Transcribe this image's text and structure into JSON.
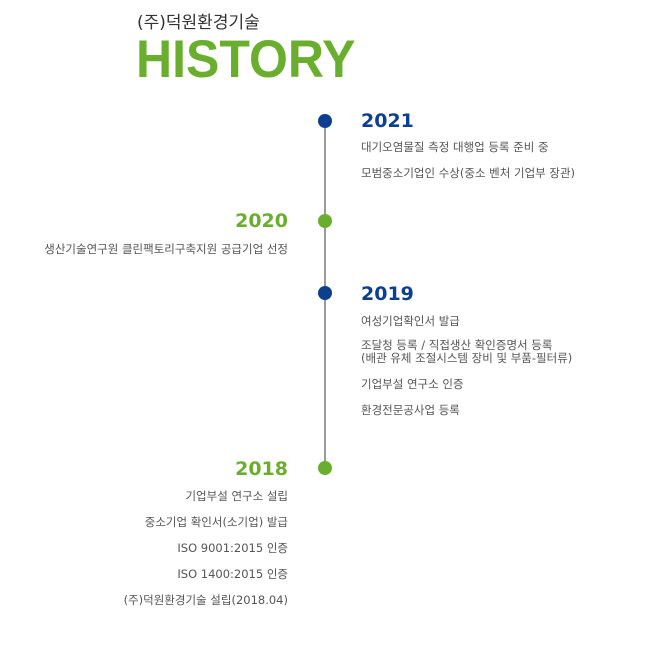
{
  "header": {
    "company": "(주)덕원환경기술",
    "title": "HISTORY"
  },
  "colors": {
    "blue": "#0d3f8f",
    "green": "#6aae2d",
    "line": "#9a9a9a"
  },
  "timeline": [
    {
      "year": "2021",
      "items": [
        "대기오염물질 측정 대행업 등록 준비 중",
        "모범중소기업인 수상(중소 벤처 기업부 장관)"
      ]
    },
    {
      "year": "2020",
      "items": [
        "생산기술연구원 클린팩토리구축지원 공급기업 선정"
      ]
    },
    {
      "year": "2019",
      "items": [
        "여성기업확인서 발급",
        "조달청 등록 / 직접생산 확인증명서 등록",
        "(배관 유체 조절시스템 장비 및 부품-필터류)",
        "기업부설 연구소 인증",
        "환경전문공사업 등록"
      ]
    },
    {
      "year": "2018",
      "items": [
        "기업부설 연구소 설립",
        "중소기업 확인서(소기업) 발급",
        "ISO 9001:2015 인증",
        "ISO 1400:2015 인증",
        "(주)덕원환경기술 설립(2018.04)"
      ]
    }
  ]
}
